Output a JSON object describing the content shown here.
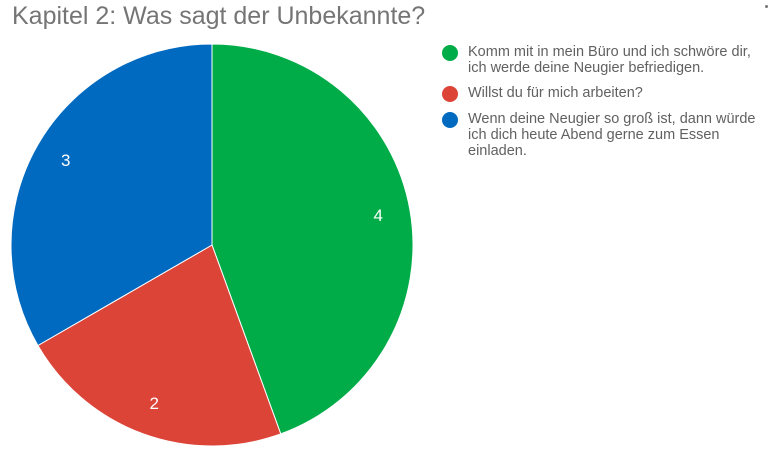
{
  "chart_data": {
    "type": "pie",
    "title": "Kapitel 2: Was sagt der Unbekannte?",
    "legend_position": "right",
    "categories": [
      "Komm mit in mein Büro und ich schwöre dir, ich werde deine Neugier befriedigen.",
      "Willst du für mich arbeiten?",
      "Wenn deine Neugier so groß ist, dann würde ich dich heute Abend gerne zum Essen einladen."
    ],
    "values": [
      4,
      2,
      3
    ],
    "data_labels": [
      "4",
      "2",
      "3"
    ],
    "colors": [
      "#00AC47",
      "#DB4437",
      "#0069C0"
    ]
  }
}
